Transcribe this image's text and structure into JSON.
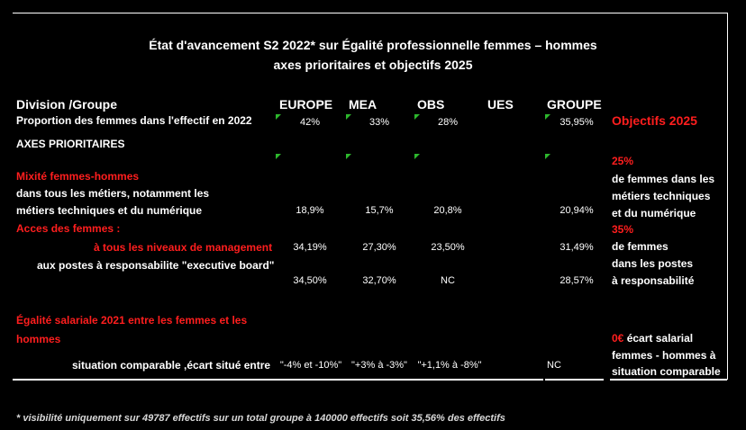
{
  "title": {
    "line1": "État d'avancement S2 2022* sur Égalité professionnelle femmes – hommes",
    "line2": "axes prioritaires et objectifs 2025"
  },
  "table": {
    "header_label": "Division /Groupe",
    "columns": [
      "EUROPE",
      "MEA",
      "OBS",
      "UES",
      "GROUPE"
    ],
    "proportion": {
      "label": "Proportion des  femmes dans l'effectif en 2022",
      "values": [
        "42%",
        "33%",
        "28%",
        "",
        "35,95%"
      ]
    },
    "axes_label": "AXES PRIORITAIRES",
    "mixite": {
      "heading": "Mixité femmes-hommes",
      "line1": "dans tous les métiers, notamment les",
      "line2": "métiers techniques et du numérique",
      "values": [
        "18,9%",
        "15,7%",
        "20,8%",
        "",
        "20,94%"
      ]
    },
    "acces": {
      "heading": "Acces des femmes :",
      "mgmt_label": "à tous les niveaux de management",
      "mgmt_values": [
        "34,19%",
        "27,30%",
        "23,50%",
        "",
        "31,49%"
      ],
      "exec_label": "aux postes à responsabilite \"executive board\"",
      "exec_values": [
        "34,50%",
        "32,70%",
        "NC",
        "",
        "28,57%"
      ]
    },
    "egalite": {
      "heading_line1": "Égalité salariale 2021 entre les femmes et les",
      "heading_line2": "hommes",
      "situation_label": "situation comparable ,écart situé entre",
      "values": [
        "\"-4% et -10%\"",
        "\"+3% à -3%\"",
        "\"+1,1% à -8%\"",
        "",
        "NC"
      ]
    }
  },
  "objectives": {
    "title": "Objectifs 2025",
    "mixite_pct": "25%",
    "mixite_l1": "de femmes dans les",
    "mixite_l2": "métiers techniques",
    "mixite_l3": "et du numérique",
    "acces_pct": "35%",
    "acces_l1": "de femmes",
    "acces_l2": "dans les postes",
    "acces_l3": "à responsabilité",
    "salaire_pct": "0€",
    "salaire_l1": " écart salarial",
    "salaire_l2": "femmes - hommes à",
    "salaire_l3": "situation comparable"
  },
  "footnote": "* visibilité uniquement sur 49787 effectifs sur  un total groupe à 140000 effectifs soit 35,56% des effectifs",
  "colors": {
    "accent_red": "#ff1e1e",
    "marker_green": "#2db82d",
    "background": "#000000"
  }
}
